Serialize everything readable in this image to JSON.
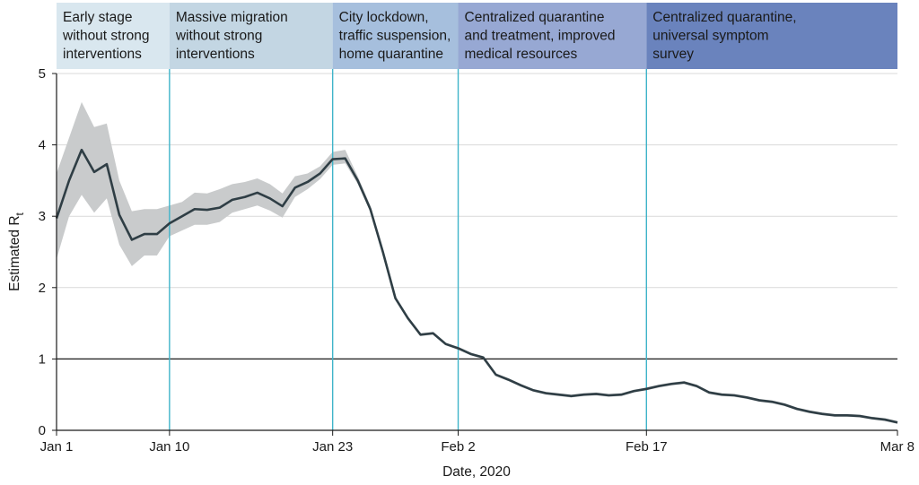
{
  "chart_data": {
    "type": "line",
    "title": "",
    "xlabel": "Date, 2020",
    "ylabel": "Estimated R",
    "ylabel_subscript": "t",
    "ylim": [
      0,
      5
    ],
    "y_ticks": [
      "0",
      "1",
      "2",
      "3",
      "4",
      "5"
    ],
    "x_ticks": [
      {
        "label": "Jan 1",
        "day": 1
      },
      {
        "label": "Jan 10",
        "day": 10
      },
      {
        "label": "Jan 23",
        "day": 23
      },
      {
        "label": "Feb 2",
        "day": 33
      },
      {
        "label": "Feb 17",
        "day": 48
      },
      {
        "label": "Mar 8",
        "day": 68
      }
    ],
    "xlim": [
      1,
      68
    ],
    "reference_line": {
      "y": 1
    },
    "phase_dividers": [
      10,
      23,
      33,
      48
    ],
    "phases": [
      {
        "label_lines": [
          "Early stage",
          "without strong",
          "interventions"
        ],
        "start": 1,
        "end": 10,
        "color": "#d9e7ef"
      },
      {
        "label_lines": [
          "Massive migration",
          "without strong",
          "interventions"
        ],
        "start": 10,
        "end": 23,
        "color": "#c3d6e3"
      },
      {
        "label_lines": [
          "City lockdown,",
          "traffic suspension,",
          "home quarantine"
        ],
        "start": 23,
        "end": 33,
        "color": "#a6bfdd"
      },
      {
        "label_lines": [
          "Centralized quarantine",
          "and treatment, improved",
          "medical resources"
        ],
        "start": 33,
        "end": 48,
        "color": "#97a8d3"
      },
      {
        "label_lines": [
          "Centralized quarantine,",
          "universal symptom",
          "survey"
        ],
        "start": 48,
        "end": 68,
        "color": "#6a83bd"
      }
    ],
    "series": [
      {
        "name": "Estimated Rt",
        "x": [
          1,
          2,
          3,
          4,
          5,
          6,
          7,
          8,
          9,
          10,
          11,
          12,
          13,
          14,
          15,
          16,
          17,
          18,
          19,
          20,
          21,
          22,
          23,
          24,
          25,
          26,
          27,
          28,
          29,
          30,
          31,
          32,
          33,
          34,
          35,
          36,
          37,
          38,
          39,
          40,
          41,
          42,
          43,
          44,
          45,
          46,
          47,
          48,
          49,
          50,
          51,
          52,
          53,
          54,
          55,
          56,
          57,
          58,
          59,
          60,
          61,
          62,
          63,
          64,
          65,
          66,
          67,
          68
        ],
        "y": [
          2.97,
          3.5,
          3.93,
          3.62,
          3.73,
          3.02,
          2.67,
          2.75,
          2.75,
          2.9,
          3.0,
          3.1,
          3.09,
          3.12,
          3.23,
          3.27,
          3.33,
          3.25,
          3.14,
          3.4,
          3.48,
          3.6,
          3.8,
          3.81,
          3.5,
          3.1,
          2.5,
          1.85,
          1.57,
          1.34,
          1.36,
          1.21,
          1.15,
          1.07,
          1.02,
          0.78,
          0.71,
          0.63,
          0.56,
          0.52,
          0.5,
          0.48,
          0.5,
          0.51,
          0.49,
          0.5,
          0.55,
          0.58,
          0.62,
          0.65,
          0.67,
          0.62,
          0.53,
          0.5,
          0.49,
          0.46,
          0.42,
          0.4,
          0.36,
          0.3,
          0.26,
          0.23,
          0.21,
          0.21,
          0.2,
          0.17,
          0.15,
          0.11
        ],
        "lower": [
          2.4,
          3.0,
          3.3,
          3.05,
          3.25,
          2.6,
          2.3,
          2.45,
          2.45,
          2.72,
          2.8,
          2.88,
          2.88,
          2.92,
          3.05,
          3.1,
          3.15,
          3.08,
          2.98,
          3.27,
          3.38,
          3.52,
          3.72,
          3.74,
          3.45,
          3.06,
          2.47,
          1.83,
          1.55,
          1.32,
          1.34,
          1.19,
          1.13,
          1.05,
          1.0,
          0.76,
          0.69,
          0.61,
          0.54,
          0.5,
          0.48,
          0.46,
          0.48,
          0.49,
          0.47,
          0.48,
          0.53,
          0.56,
          0.6,
          0.63,
          0.65,
          0.6,
          0.51,
          0.48,
          0.47,
          0.44,
          0.4,
          0.38,
          0.34,
          0.28,
          0.24,
          0.21,
          0.19,
          0.19,
          0.18,
          0.15,
          0.13,
          0.09
        ],
        "upper": [
          3.6,
          4.1,
          4.6,
          4.25,
          4.3,
          3.5,
          3.07,
          3.1,
          3.1,
          3.15,
          3.2,
          3.33,
          3.32,
          3.38,
          3.45,
          3.48,
          3.53,
          3.45,
          3.32,
          3.56,
          3.6,
          3.7,
          3.9,
          3.93,
          3.56,
          3.15,
          2.53,
          1.88,
          1.59,
          1.36,
          1.38,
          1.23,
          1.17,
          1.09,
          1.04,
          0.8,
          0.73,
          0.65,
          0.58,
          0.54,
          0.52,
          0.5,
          0.52,
          0.53,
          0.51,
          0.52,
          0.57,
          0.6,
          0.64,
          0.67,
          0.69,
          0.64,
          0.55,
          0.52,
          0.51,
          0.48,
          0.44,
          0.42,
          0.38,
          0.32,
          0.28,
          0.25,
          0.23,
          0.23,
          0.22,
          0.19,
          0.17,
          0.13
        ]
      }
    ]
  }
}
